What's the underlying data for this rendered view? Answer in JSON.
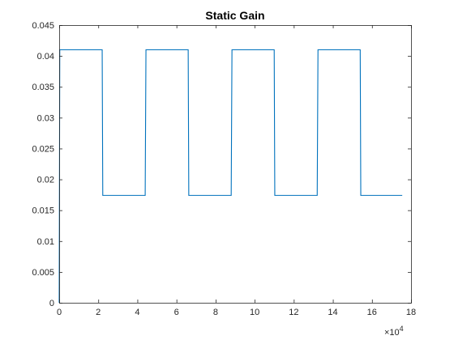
{
  "chart_data": {
    "type": "line",
    "title": "Static Gain",
    "xlabel": "",
    "ylabel": "",
    "xlim": [
      0,
      180000
    ],
    "ylim": [
      0,
      0.045
    ],
    "x_ticks": [
      0,
      20000,
      40000,
      60000,
      80000,
      100000,
      120000,
      140000,
      160000,
      180000
    ],
    "x_tick_labels": [
      "0",
      "2",
      "4",
      "6",
      "8",
      "10",
      "12",
      "14",
      "16",
      "18"
    ],
    "x_exponent_base": "×10",
    "x_exponent_power": "4",
    "y_ticks": [
      0,
      0.005,
      0.01,
      0.015,
      0.02,
      0.025,
      0.03,
      0.035,
      0.04,
      0.045
    ],
    "y_tick_labels": [
      "0",
      "0.005",
      "0.01",
      "0.015",
      "0.02",
      "0.025",
      "0.03",
      "0.035",
      "0.04",
      "0.045"
    ],
    "grid": false,
    "line_color": "#0072BD",
    "series": [
      {
        "x": [
          0,
          300,
          800,
          22000,
          22300,
          22900,
          44000,
          44400,
          45000,
          66000,
          66300,
          66900,
          88000,
          88400,
          89000,
          110000,
          110300,
          110900,
          132000,
          132400,
          133000,
          154000,
          154300,
          154900,
          175500
        ],
        "values": [
          0,
          0.041,
          0.041,
          0.041,
          0.0174,
          0.0174,
          0.0174,
          0.041,
          0.041,
          0.041,
          0.0174,
          0.0174,
          0.0174,
          0.041,
          0.041,
          0.041,
          0.0174,
          0.0174,
          0.0174,
          0.041,
          0.041,
          0.041,
          0.0174,
          0.0174,
          0.0174
        ]
      }
    ]
  }
}
